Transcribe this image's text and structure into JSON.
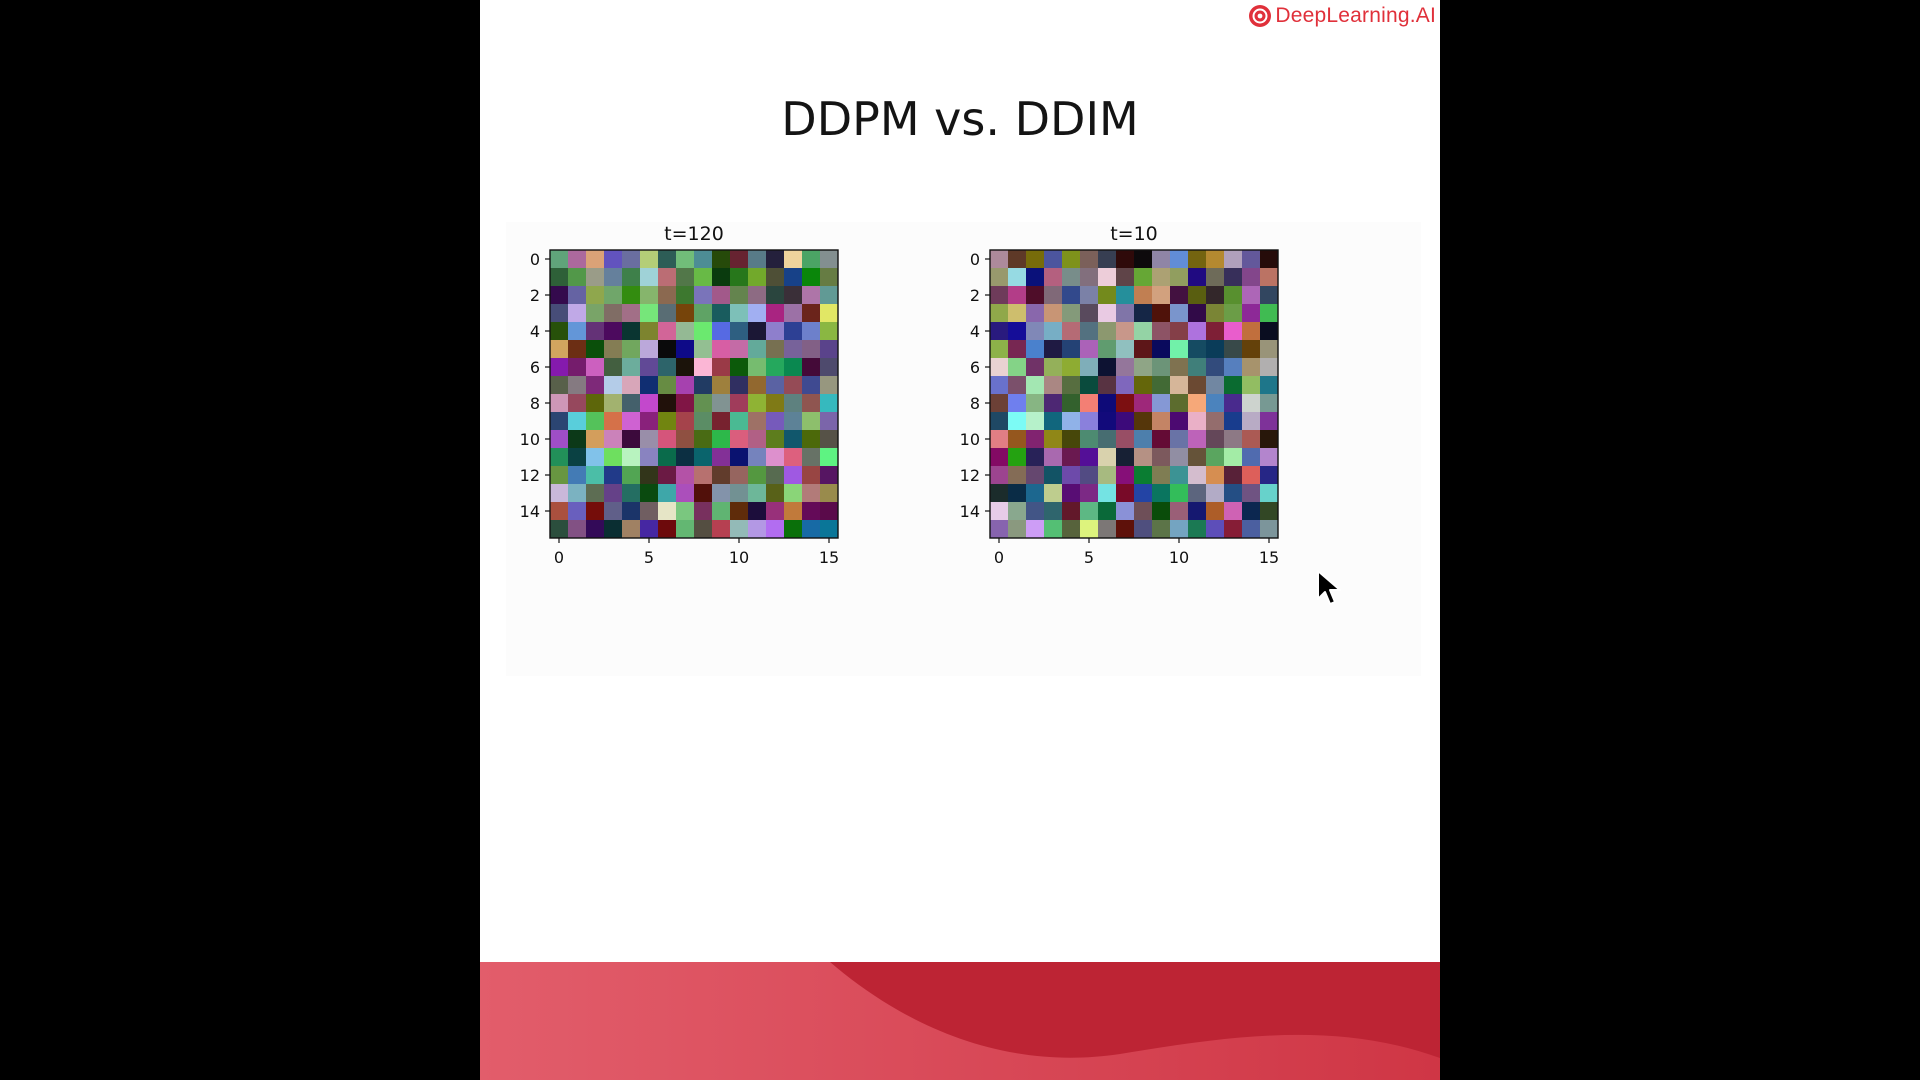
{
  "brand": {
    "name": "DeepLearning.AI",
    "color": "#e0303a"
  },
  "slide": {
    "title": "DDPM vs. DDIM"
  },
  "cursor": {
    "icon": "arrow-cursor-icon"
  },
  "chart_data": [
    {
      "type": "heatmap",
      "title": "t=120",
      "grid_size": 16,
      "xlim": [
        -0.5,
        15.5
      ],
      "ylim": [
        15.5,
        -0.5
      ],
      "x_ticks": [
        0,
        5,
        10,
        15
      ],
      "y_ticks": [
        0,
        2,
        4,
        6,
        8,
        10,
        12,
        14
      ],
      "cell_seed": 120,
      "xlabel": "",
      "ylabel": ""
    },
    {
      "type": "heatmap",
      "title": "t=10",
      "grid_size": 16,
      "xlim": [
        -0.5,
        15.5
      ],
      "ylim": [
        15.5,
        -0.5
      ],
      "x_ticks": [
        0,
        5,
        10,
        15
      ],
      "y_ticks": [
        0,
        2,
        4,
        6,
        8,
        10,
        12,
        14
      ],
      "cell_seed": 10,
      "xlabel": "",
      "ylabel": ""
    }
  ],
  "footer": {
    "color_light": "#e05866",
    "color_dark": "#bd2434"
  }
}
